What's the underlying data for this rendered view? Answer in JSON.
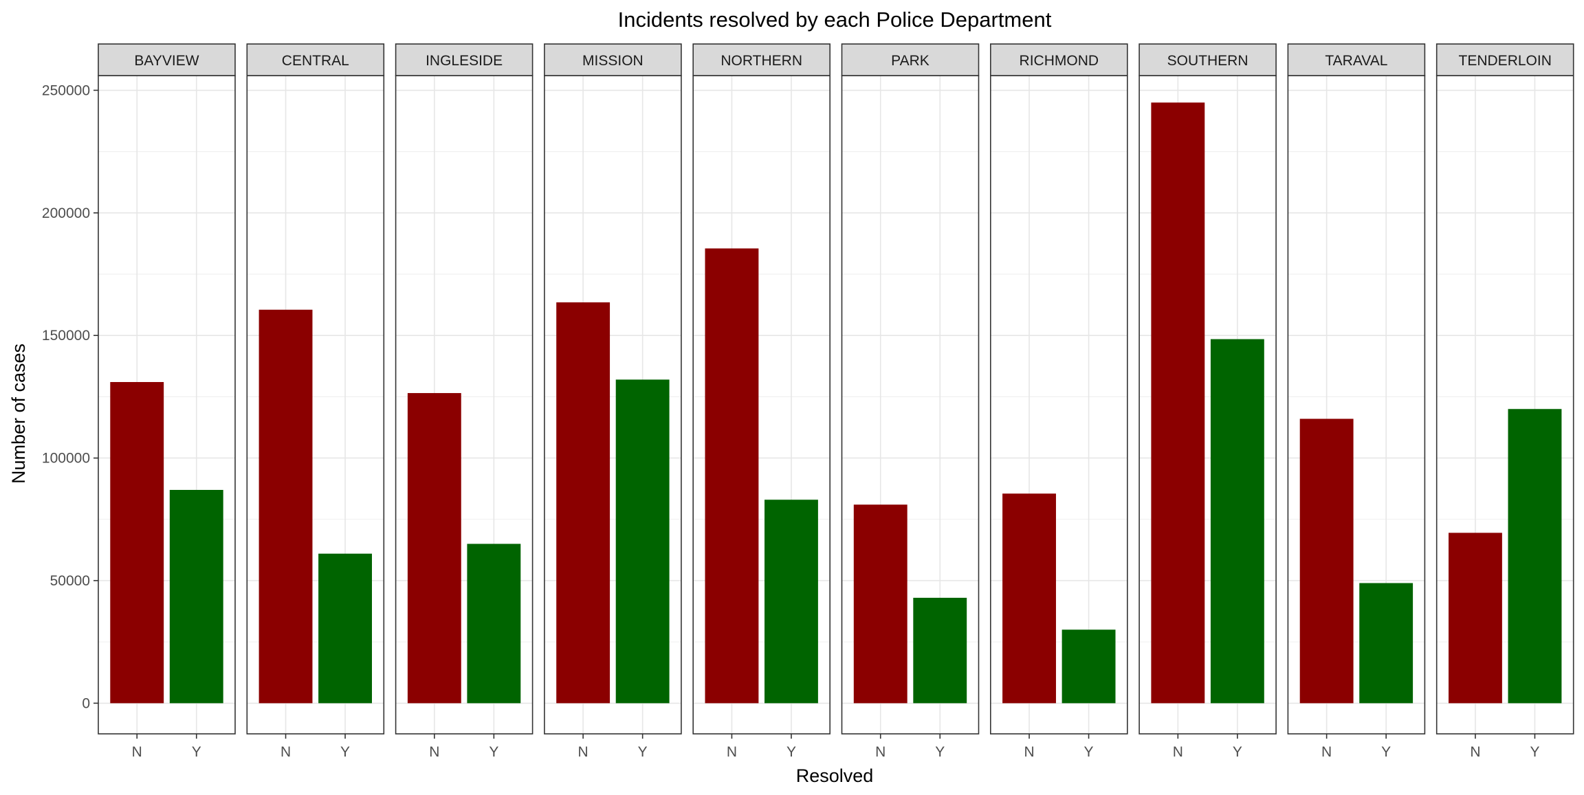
{
  "chart_data": {
    "type": "bar",
    "title": "Incidents resolved by each Police Department",
    "xlabel": "Resolved",
    "ylabel": "Number of cases",
    "ylim": [
      -12500,
      256000
    ],
    "yticks": [
      0,
      50000,
      100000,
      150000,
      200000,
      250000
    ],
    "ytick_labels": [
      "0",
      "50000",
      "100000",
      "150000",
      "200000",
      "250000"
    ],
    "categories": [
      "N",
      "Y"
    ],
    "grid": true,
    "legend": "none",
    "colors": {
      "N": "#8B0000",
      "Y": "#006400"
    },
    "facets": [
      {
        "name": "BAYVIEW",
        "values": [
          131000,
          87000
        ]
      },
      {
        "name": "CENTRAL",
        "values": [
          160500,
          61000
        ]
      },
      {
        "name": "INGLESIDE",
        "values": [
          126500,
          65000
        ]
      },
      {
        "name": "MISSION",
        "values": [
          163500,
          132000
        ]
      },
      {
        "name": "NORTHERN",
        "values": [
          185500,
          83000
        ]
      },
      {
        "name": "PARK",
        "values": [
          81000,
          43000
        ]
      },
      {
        "name": "RICHMOND",
        "values": [
          85500,
          30000
        ]
      },
      {
        "name": "SOUTHERN",
        "values": [
          245000,
          148500
        ]
      },
      {
        "name": "TARAVAL",
        "values": [
          116000,
          49000
        ]
      },
      {
        "name": "TENDERLOIN",
        "values": [
          69500,
          120000
        ]
      }
    ]
  }
}
